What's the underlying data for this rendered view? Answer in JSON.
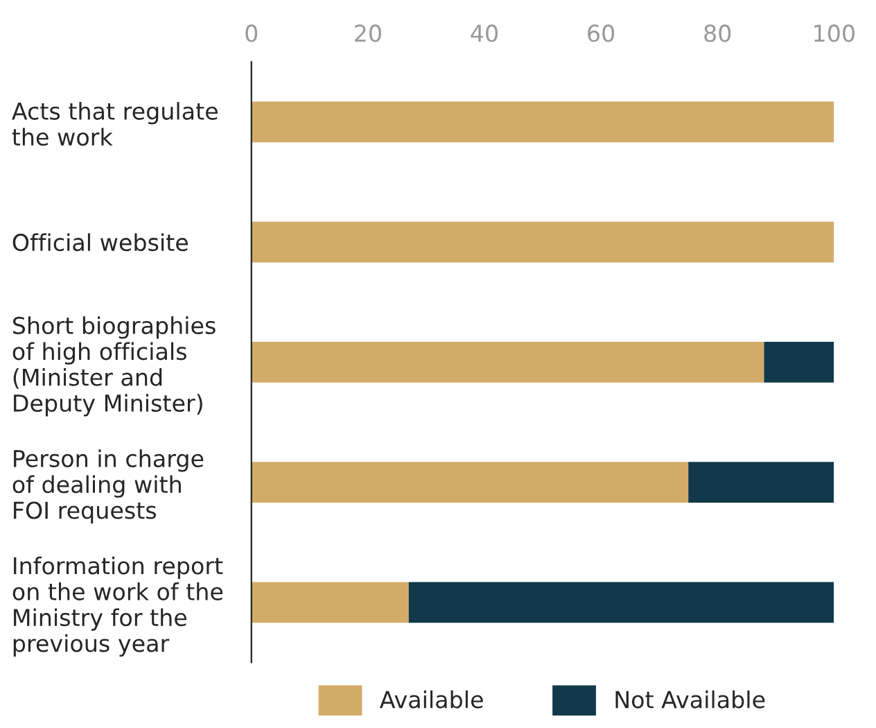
{
  "chart_data": {
    "type": "bar",
    "orientation": "horizontal",
    "stacked": true,
    "categories": [
      "Acts that regulate\nthe work",
      "Official website",
      "Short biographies\nof high officials\n(Minister and\nDeputy Minister)",
      "Person in charge\nof dealing with\nFOI requests",
      "Information report\non the work of the\nMinistry for the\nprevious year"
    ],
    "series": [
      {
        "name": "Available",
        "color": "#d3ab69",
        "values": [
          100,
          100,
          88,
          75,
          27
        ]
      },
      {
        "name": "Not Available",
        "color": "#12384b",
        "values": [
          null,
          null,
          12,
          25,
          73
        ]
      }
    ],
    "xlim": [
      0,
      100
    ],
    "xticks": [
      0,
      20,
      40,
      60,
      80,
      100
    ],
    "grid": false,
    "legend": "bottom"
  }
}
